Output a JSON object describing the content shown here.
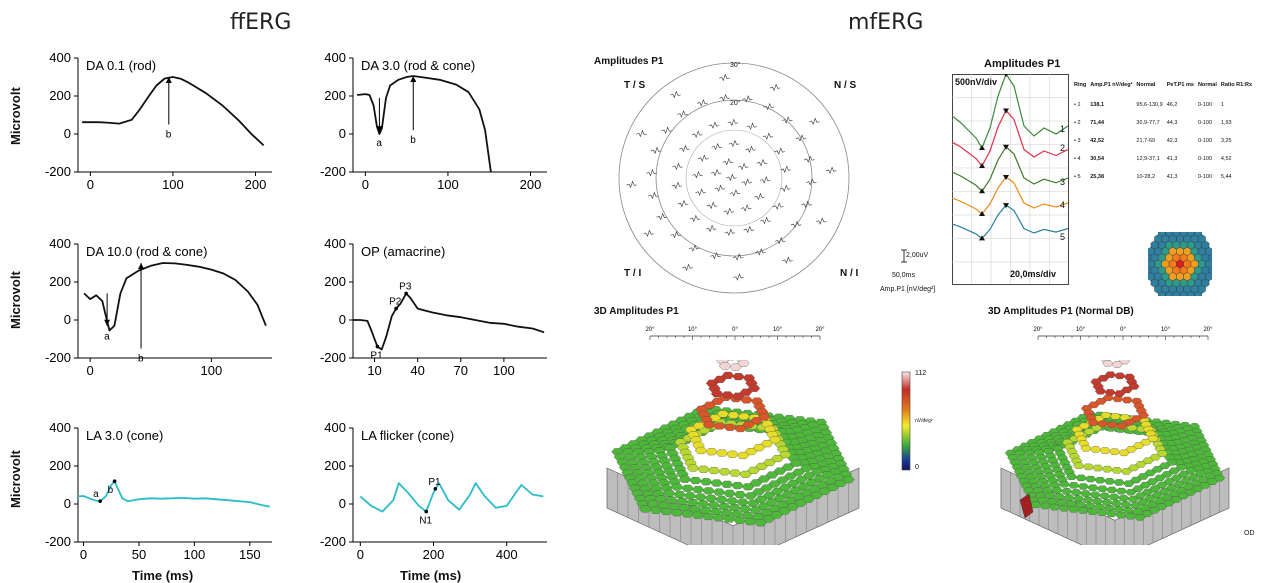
{
  "titles": {
    "fferg": "ffERG",
    "mferg": "mfERG"
  },
  "ylabel": "Microvolt",
  "xlabel": "Time (ms)",
  "chart_data": [
    {
      "type": "line",
      "title": "DA 0.1 (rod)",
      "yticks": [
        400,
        200,
        0,
        -200
      ],
      "ylim": [
        -200,
        400
      ],
      "xticks": [
        0,
        100,
        200
      ],
      "xlim": [
        -15,
        220
      ],
      "color": "#111111",
      "series": [
        {
          "x": [
            -10,
            10,
            20,
            35,
            50,
            60,
            70,
            80,
            90,
            100,
            110,
            120,
            140,
            160,
            180,
            195,
            210
          ],
          "values": [
            62,
            62,
            60,
            55,
            75,
            130,
            195,
            255,
            292,
            300,
            290,
            268,
            215,
            150,
            70,
            0,
            -60
          ]
        }
      ],
      "annotations": [
        {
          "label": "b",
          "x": 95,
          "y0": 50,
          "y1": 300
        }
      ]
    },
    {
      "type": "line",
      "title": "DA 3.0 (rod & cone)",
      "yticks": [
        400,
        200,
        0,
        -200
      ],
      "ylim": [
        -200,
        400
      ],
      "xticks": [
        0,
        100,
        200
      ],
      "xlim": [
        -15,
        220
      ],
      "color": "#111111",
      "series": [
        {
          "x": [
            -10,
            0,
            5,
            10,
            14,
            17,
            20,
            25,
            30,
            40,
            50,
            58,
            70,
            90,
            110,
            125,
            138,
            145,
            152
          ],
          "values": [
            205,
            210,
            205,
            150,
            40,
            0,
            30,
            190,
            255,
            285,
            300,
            305,
            298,
            285,
            260,
            220,
            130,
            20,
            -200
          ]
        }
      ],
      "annotations": [
        {
          "label": "a",
          "x": 17,
          "y0": 190,
          "y1": 10
        },
        {
          "label": "b",
          "x": 58,
          "y0": 20,
          "y1": 305
        }
      ]
    },
    {
      "type": "line",
      "title": "DA 10.0 (rod & cone)",
      "yticks": [
        400,
        200,
        0,
        -200
      ],
      "ylim": [
        -200,
        400
      ],
      "xticks": [
        0,
        100
      ],
      "xlim": [
        -10,
        150
      ],
      "color": "#111111",
      "series": [
        {
          "x": [
            -5,
            0,
            5,
            10,
            13,
            16,
            20,
            25,
            30,
            40,
            50,
            60,
            70,
            80,
            90,
            100,
            110,
            120,
            130,
            138,
            145
          ],
          "values": [
            140,
            110,
            130,
            100,
            20,
            -55,
            -30,
            140,
            220,
            260,
            285,
            300,
            298,
            290,
            280,
            265,
            245,
            210,
            150,
            80,
            -30
          ]
        }
      ],
      "annotations": [
        {
          "label": "a",
          "x": 14,
          "y0": 140,
          "y1": -30
        },
        {
          "label": "b",
          "x": 42,
          "y0": -150,
          "y1": 300
        }
      ]
    },
    {
      "type": "line",
      "title": "OP (amacrine)",
      "yticks": [
        400,
        200,
        0,
        -200
      ],
      "ylim": [
        -200,
        400
      ],
      "xticks": [
        10,
        40,
        70,
        100
      ],
      "xticklabels": [
        "10",
        "40",
        "70",
        "100"
      ],
      "xlim": [
        -5,
        130
      ],
      "color": "#111111",
      "series": [
        {
          "x": [
            -5,
            0,
            5,
            8,
            12,
            15,
            18,
            22,
            25,
            28,
            32,
            35,
            40,
            50,
            60,
            70,
            80,
            90,
            100,
            110,
            120,
            128
          ],
          "values": [
            0,
            0,
            -5,
            -60,
            -140,
            -155,
            -90,
            20,
            60,
            85,
            140,
            115,
            60,
            40,
            25,
            15,
            0,
            -15,
            -20,
            -35,
            -45,
            -65
          ]
        }
      ],
      "xticks_extra": [
        {
          "v": 10
        },
        {
          "v": 40
        },
        {
          "v": 70
        },
        {
          "v": 100
        }
      ],
      "points": [
        {
          "label": "P1",
          "x": 12,
          "y": -140
        },
        {
          "label": "P2",
          "x": 25,
          "y": 60
        },
        {
          "label": "P3",
          "x": 32,
          "y": 140
        }
      ]
    },
    {
      "type": "line",
      "title": "LA 3.0 (cone)",
      "yticks": [
        400,
        200,
        0,
        -200
      ],
      "ylim": [
        -200,
        400
      ],
      "xticks": [
        0,
        50,
        100,
        150
      ],
      "xlim": [
        -5,
        170
      ],
      "color": "#2bbccc",
      "series": [
        {
          "x": [
            -5,
            0,
            5,
            10,
            15,
            20,
            25,
            28,
            31,
            35,
            40,
            50,
            60,
            70,
            80,
            90,
            100,
            110,
            120,
            130,
            140,
            150,
            160,
            168
          ],
          "values": [
            40,
            42,
            30,
            20,
            15,
            40,
            100,
            120,
            80,
            30,
            15,
            25,
            30,
            28,
            30,
            32,
            28,
            30,
            25,
            20,
            15,
            10,
            -5,
            -15
          ]
        }
      ],
      "points": [
        {
          "label": "a",
          "x": 15,
          "y": 15
        },
        {
          "label": "b",
          "x": 28,
          "y": 120
        }
      ]
    },
    {
      "type": "line",
      "title": "LA flicker (cone)",
      "yticks": [
        400,
        200,
        0,
        -200
      ],
      "ylim": [
        -200,
        400
      ],
      "xticks": [
        0,
        200,
        400
      ],
      "xlim": [
        -20,
        510
      ],
      "color": "#2bbccc",
      "series": [
        {
          "x": [
            0,
            30,
            60,
            90,
            105,
            130,
            160,
            180,
            200,
            215,
            240,
            270,
            300,
            315,
            340,
            370,
            400,
            425,
            440,
            470,
            500
          ],
          "values": [
            40,
            -10,
            -40,
            20,
            110,
            60,
            -10,
            -40,
            60,
            110,
            20,
            -30,
            50,
            110,
            40,
            -20,
            -10,
            60,
            100,
            50,
            40
          ]
        }
      ],
      "points": [
        {
          "label": "P1",
          "x": 205,
          "y": 80
        },
        {
          "label": "N1",
          "x": 180,
          "y": -40
        }
      ]
    }
  ],
  "mferg": {
    "amp_title": "Amplitudes P1",
    "quadrants": [
      "T / S",
      "N / S",
      "T / I",
      "N / I"
    ],
    "ring_deg": [
      "30°",
      "20°"
    ],
    "scale_bar_uv": "2,00uV",
    "scale_bar_ms": "50,0ms",
    "scale_bar_unit": "Amp.P1 [nV/deg²]",
    "traces_title": "Amplitudes P1",
    "traces_scale_y": "500nV/div",
    "traces_scale_x": "20,0ms/div",
    "ring_labels": [
      "1",
      "2",
      "3",
      "4",
      "5"
    ],
    "table_headers": [
      "Ring",
      "Amp.P1\nnV/deg²",
      "Normal",
      "PeT.P1\nms",
      "Normal",
      "Ratio\nR1:Rx"
    ],
    "table_rows": [
      [
        "• 1",
        "138,1",
        "95,6-130,9",
        "46,2",
        "0-100",
        "1"
      ],
      [
        "• 2",
        "71,44",
        "30,9-77,7",
        "44,3",
        "0-100",
        "1,93"
      ],
      [
        "• 3",
        "42,52",
        "21,7-69",
        "42,3",
        "0-100",
        "3,25"
      ],
      [
        "• 4",
        "30,54",
        "12,9-37,1",
        "41,3",
        "0-100",
        "4,52"
      ],
      [
        "• 5",
        "25,38",
        "10-28,2",
        "41,3",
        "0-100",
        "5,44"
      ]
    ],
    "trace_colors": [
      "#3b8a3b",
      "#e0304a",
      "#3b7a2a",
      "#f08a1c",
      "#2a7fa0"
    ],
    "surface_left_title": "3D Amplitudes P1",
    "surface_right_title": "3D Amplitudes P1 (Normal DB)",
    "ruler_ticks": [
      "20°",
      "10°",
      "0°",
      "10°",
      "20°"
    ],
    "colorbar_max": "112",
    "colorbar_min": "0",
    "colorbar_unit": "nV/deg²",
    "eye": "OD"
  }
}
